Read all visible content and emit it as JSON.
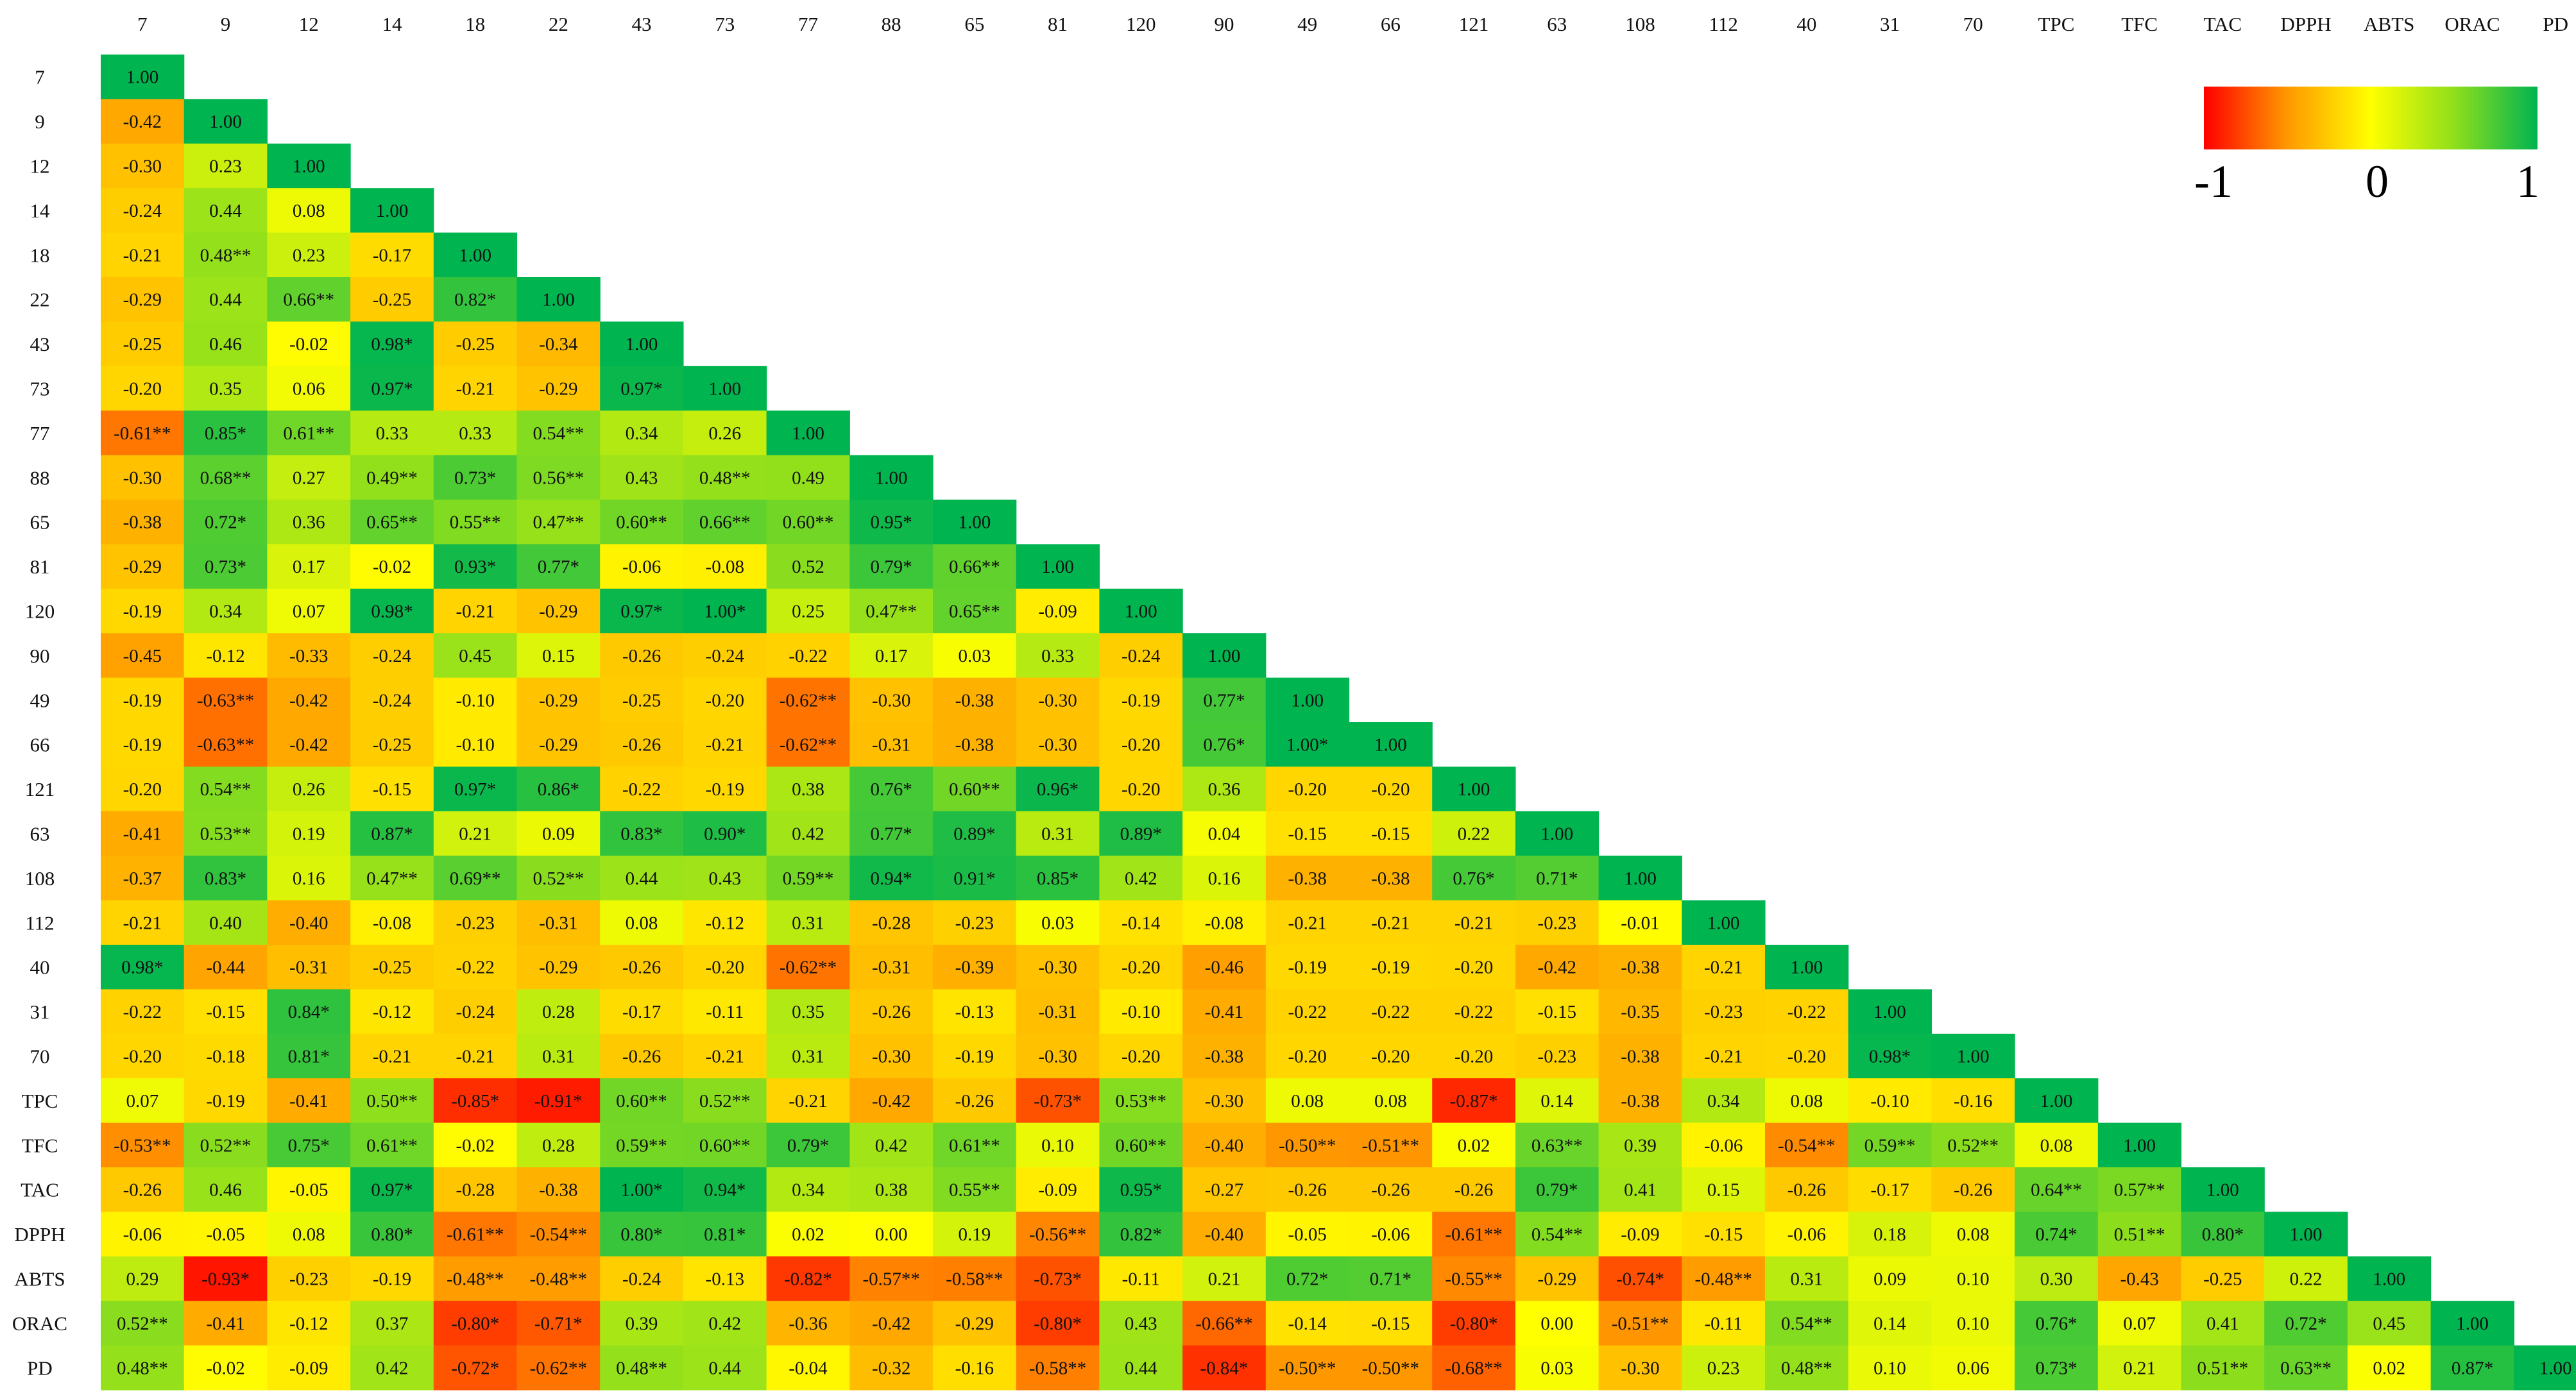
{
  "chart_data": {
    "type": "heatmap",
    "title": "",
    "variables": [
      "7",
      "9",
      "12",
      "14",
      "18",
      "22",
      "43",
      "73",
      "77",
      "88",
      "65",
      "81",
      "120",
      "90",
      "49",
      "66",
      "121",
      "63",
      "108",
      "112",
      "40",
      "31",
      "70",
      "TPC",
      "TFC",
      "TAC",
      "DPPH",
      "ABTS",
      "ORAC",
      "PD"
    ],
    "matrix_lower_triangle": [
      [
        "1.00"
      ],
      [
        "-0.42",
        "1.00"
      ],
      [
        "-0.30",
        "0.23",
        "1.00"
      ],
      [
        "-0.24",
        "0.44",
        "0.08",
        "1.00"
      ],
      [
        "-0.21",
        "0.48**",
        "0.23",
        "-0.17",
        "1.00"
      ],
      [
        "-0.29",
        "0.44",
        "0.66**",
        "-0.25",
        "0.82*",
        "1.00"
      ],
      [
        "-0.25",
        "0.46",
        "-0.02",
        "0.98*",
        "-0.25",
        "-0.34",
        "1.00"
      ],
      [
        "-0.20",
        "0.35",
        "0.06",
        "0.97*",
        "-0.21",
        "-0.29",
        "0.97*",
        "1.00"
      ],
      [
        "-0.61**",
        "0.85*",
        "0.61**",
        "0.33",
        "0.33",
        "0.54**",
        "0.34",
        "0.26",
        "1.00"
      ],
      [
        "-0.30",
        "0.68**",
        "0.27",
        "0.49**",
        "0.73*",
        "0.56**",
        "0.43",
        "0.48**",
        "0.49",
        "1.00"
      ],
      [
        "-0.38",
        "0.72*",
        "0.36",
        "0.65**",
        "0.55**",
        "0.47**",
        "0.60**",
        "0.66**",
        "0.60**",
        "0.95*",
        "1.00"
      ],
      [
        "-0.29",
        "0.73*",
        "0.17",
        "-0.02",
        "0.93*",
        "0.77*",
        "-0.06",
        "-0.08",
        "0.52",
        "0.79*",
        "0.66**",
        "1.00"
      ],
      [
        "-0.19",
        "0.34",
        "0.07",
        "0.98*",
        "-0.21",
        "-0.29",
        "0.97*",
        "1.00*",
        "0.25",
        "0.47**",
        "0.65**",
        "-0.09",
        "1.00"
      ],
      [
        "-0.45",
        "-0.12",
        "-0.33",
        "-0.24",
        "0.45",
        "0.15",
        "-0.26",
        "-0.24",
        "-0.22",
        "0.17",
        "0.03",
        "0.33",
        "-0.24",
        "1.00"
      ],
      [
        "-0.19",
        "-0.63**",
        "-0.42",
        "-0.24",
        "-0.10",
        "-0.29",
        "-0.25",
        "-0.20",
        "-0.62**",
        "-0.30",
        "-0.38",
        "-0.30",
        "-0.19",
        "0.77*",
        "1.00"
      ],
      [
        "-0.19",
        "-0.63**",
        "-0.42",
        "-0.25",
        "-0.10",
        "-0.29",
        "-0.26",
        "-0.21",
        "-0.62**",
        "-0.31",
        "-0.38",
        "-0.30",
        "-0.20",
        "0.76*",
        "1.00*",
        "1.00"
      ],
      [
        "-0.20",
        "0.54**",
        "0.26",
        "-0.15",
        "0.97*",
        "0.86*",
        "-0.22",
        "-0.19",
        "0.38",
        "0.76*",
        "0.60**",
        "0.96*",
        "-0.20",
        "0.36",
        "-0.20",
        "-0.20",
        "1.00"
      ],
      [
        "-0.41",
        "0.53**",
        "0.19",
        "0.87*",
        "0.21",
        "0.09",
        "0.83*",
        "0.90*",
        "0.42",
        "0.77*",
        "0.89*",
        "0.31",
        "0.89*",
        "0.04",
        "-0.15",
        "-0.15",
        "0.22",
        "1.00"
      ],
      [
        "-0.37",
        "0.83*",
        "0.16",
        "0.47**",
        "0.69**",
        "0.52**",
        "0.44",
        "0.43",
        "0.59**",
        "0.94*",
        "0.91*",
        "0.85*",
        "0.42",
        "0.16",
        "-0.38",
        "-0.38",
        "0.76*",
        "0.71*",
        "1.00"
      ],
      [
        "-0.21",
        "0.40",
        "-0.40",
        "-0.08",
        "-0.23",
        "-0.31",
        "0.08",
        "-0.12",
        "0.31",
        "-0.28",
        "-0.23",
        "0.03",
        "-0.14",
        "-0.08",
        "-0.21",
        "-0.21",
        "-0.21",
        "-0.23",
        "-0.01",
        "1.00"
      ],
      [
        "0.98*",
        "-0.44",
        "-0.31",
        "-0.25",
        "-0.22",
        "-0.29",
        "-0.26",
        "-0.20",
        "-0.62**",
        "-0.31",
        "-0.39",
        "-0.30",
        "-0.20",
        "-0.46",
        "-0.19",
        "-0.19",
        "-0.20",
        "-0.42",
        "-0.38",
        "-0.21",
        "1.00"
      ],
      [
        "-0.22",
        "-0.15",
        "0.84*",
        "-0.12",
        "-0.24",
        "0.28",
        "-0.17",
        "-0.11",
        "0.35",
        "-0.26",
        "-0.13",
        "-0.31",
        "-0.10",
        "-0.41",
        "-0.22",
        "-0.22",
        "-0.22",
        "-0.15",
        "-0.35",
        "-0.23",
        "-0.22",
        "1.00"
      ],
      [
        "-0.20",
        "-0.18",
        "0.81*",
        "-0.21",
        "-0.21",
        "0.31",
        "-0.26",
        "-0.21",
        "0.31",
        "-0.30",
        "-0.19",
        "-0.30",
        "-0.20",
        "-0.38",
        "-0.20",
        "-0.20",
        "-0.20",
        "-0.23",
        "-0.38",
        "-0.21",
        "-0.20",
        "0.98*",
        "1.00"
      ],
      [
        "0.07",
        "-0.19",
        "-0.41",
        "0.50**",
        "-0.85*",
        "-0.91*",
        "0.60**",
        "0.52**",
        "-0.21",
        "-0.42",
        "-0.26",
        "-0.73*",
        "0.53**",
        "-0.30",
        "0.08",
        "0.08",
        "-0.87*",
        "0.14",
        "-0.38",
        "0.34",
        "0.08",
        "-0.10",
        "-0.16",
        "1.00"
      ],
      [
        "-0.53**",
        "0.52**",
        "0.75*",
        "0.61**",
        "-0.02",
        "0.28",
        "0.59**",
        "0.60**",
        "0.79*",
        "0.42",
        "0.61**",
        "0.10",
        "0.60**",
        "-0.40",
        "-0.50**",
        "-0.51**",
        "0.02",
        "0.63**",
        "0.39",
        "-0.06",
        "-0.54**",
        "0.59**",
        "0.52**",
        "0.08",
        "1.00"
      ],
      [
        "-0.26",
        "0.46",
        "-0.05",
        "0.97*",
        "-0.28",
        "-0.38",
        "1.00*",
        "0.94*",
        "0.34",
        "0.38",
        "0.55**",
        "-0.09",
        "0.95*",
        "-0.27",
        "-0.26",
        "-0.26",
        "-0.26",
        "0.79*",
        "0.41",
        "0.15",
        "-0.26",
        "-0.17",
        "-0.26",
        "0.64**",
        "0.57**",
        "1.00"
      ],
      [
        "-0.06",
        "-0.05",
        "0.08",
        "0.80*",
        "-0.61**",
        "-0.54**",
        "0.80*",
        "0.81*",
        "0.02",
        "0.00",
        "0.19",
        "-0.56**",
        "0.82*",
        "-0.40",
        "-0.05",
        "-0.06",
        "-0.61**",
        "0.54**",
        "-0.09",
        "-0.15",
        "-0.06",
        "0.18",
        "0.08",
        "0.74*",
        "0.51**",
        "0.80*",
        "1.00"
      ],
      [
        "0.29",
        "-0.93*",
        "-0.23",
        "-0.19",
        "-0.48**",
        "-0.48**",
        "-0.24",
        "-0.13",
        "-0.82*",
        "-0.57**",
        "-0.58**",
        "-0.73*",
        "-0.11",
        "0.21",
        "0.72*",
        "0.71*",
        "-0.55**",
        "-0.29",
        "-0.74*",
        "-0.48**",
        "0.31",
        "0.09",
        "0.10",
        "0.30",
        "-0.43",
        "-0.25",
        "0.22",
        "1.00"
      ],
      [
        "0.52**",
        "-0.41",
        "-0.12",
        "0.37",
        "-0.80*",
        "-0.71*",
        "0.39",
        "0.42",
        "-0.36",
        "-0.42",
        "-0.29",
        "-0.80*",
        "0.43",
        "-0.66**",
        "-0.14",
        "-0.15",
        "-0.80*",
        "0.00",
        "-0.51**",
        "-0.11",
        "0.54**",
        "0.14",
        "0.10",
        "0.76*",
        "0.07",
        "0.41",
        "0.72*",
        "0.45",
        "1.00"
      ],
      [
        "0.48**",
        "-0.02",
        "-0.09",
        "0.42",
        "-0.72*",
        "-0.62**",
        "0.48**",
        "0.44",
        "-0.04",
        "-0.32",
        "-0.16",
        "-0.58**",
        "0.44",
        "-0.84*",
        "-0.50**",
        "-0.50**",
        "-0.68**",
        "0.03",
        "-0.30",
        "0.23",
        "0.48**",
        "0.10",
        "0.06",
        "0.73*",
        "0.21",
        "0.51**",
        "0.63**",
        "0.02",
        "0.87*",
        "1.00"
      ]
    ],
    "color_scale": {
      "min": -1,
      "mid": 0,
      "max": 1,
      "stops": [
        {
          "value": -1,
          "color": "#ff0000"
        },
        {
          "value": -0.5,
          "color": "#ff9800"
        },
        {
          "value": 0,
          "color": "#ffff00"
        },
        {
          "value": 0.5,
          "color": "#8fdf1c"
        },
        {
          "value": 1,
          "color": "#00b450"
        }
      ]
    },
    "legend": {
      "placement": "top-right",
      "tick_labels": [
        "-1",
        "0",
        "1"
      ]
    },
    "grid": false
  }
}
